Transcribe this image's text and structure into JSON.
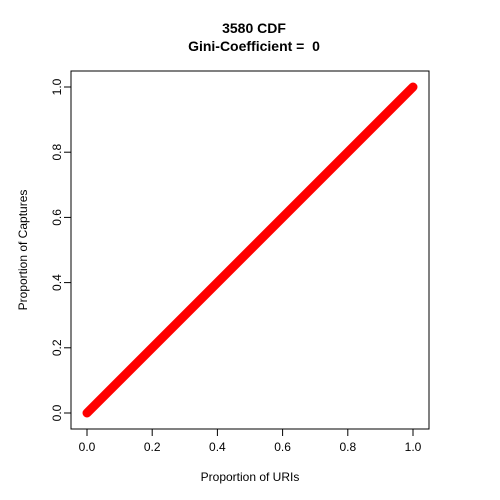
{
  "chart_data": {
    "type": "line",
    "title": "3580 CDF",
    "subtitle": "Gini-Coefficient =  0",
    "xlabel": "Proportion of URIs",
    "ylabel": "Proportion of Captures",
    "xlim": [
      0,
      1
    ],
    "ylim": [
      0,
      1
    ],
    "x_ticks": [
      "0.0",
      "0.2",
      "0.4",
      "0.6",
      "0.8",
      "1.0"
    ],
    "y_ticks": [
      "0.0",
      "0.2",
      "0.4",
      "0.6",
      "0.8",
      "1.0"
    ],
    "grid": false,
    "series": [
      {
        "color": "#ff0000",
        "x": [
          0,
          1
        ],
        "y": [
          0,
          1
        ]
      }
    ]
  }
}
